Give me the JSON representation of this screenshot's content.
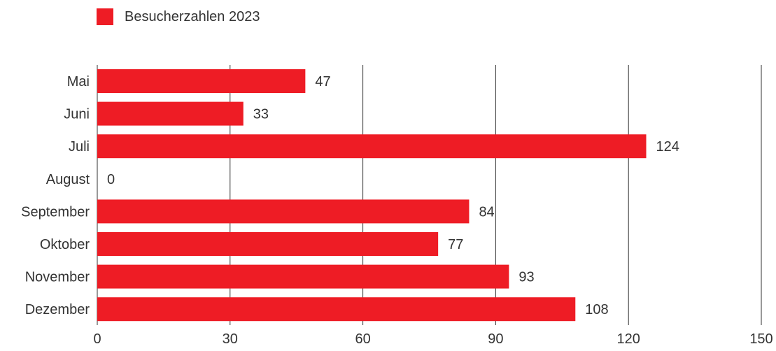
{
  "chart_data": {
    "type": "bar",
    "orientation": "horizontal",
    "categories": [
      "Mai",
      "Juni",
      "Juli",
      "August",
      "September",
      "Oktober",
      "November",
      "Dezember"
    ],
    "series": [
      {
        "name": "Besucherzahlen 2023",
        "values": [
          47,
          33,
          124,
          0,
          84,
          77,
          93,
          108
        ]
      }
    ],
    "xlim": [
      0,
      150
    ],
    "xticks": [
      0,
      30,
      60,
      90,
      120,
      150
    ],
    "grid": "vertical",
    "legend": "top-left",
    "data_labels": true
  },
  "colors": {
    "bar": "#ee1c25",
    "grid": "#333333",
    "text": "#333333"
  }
}
